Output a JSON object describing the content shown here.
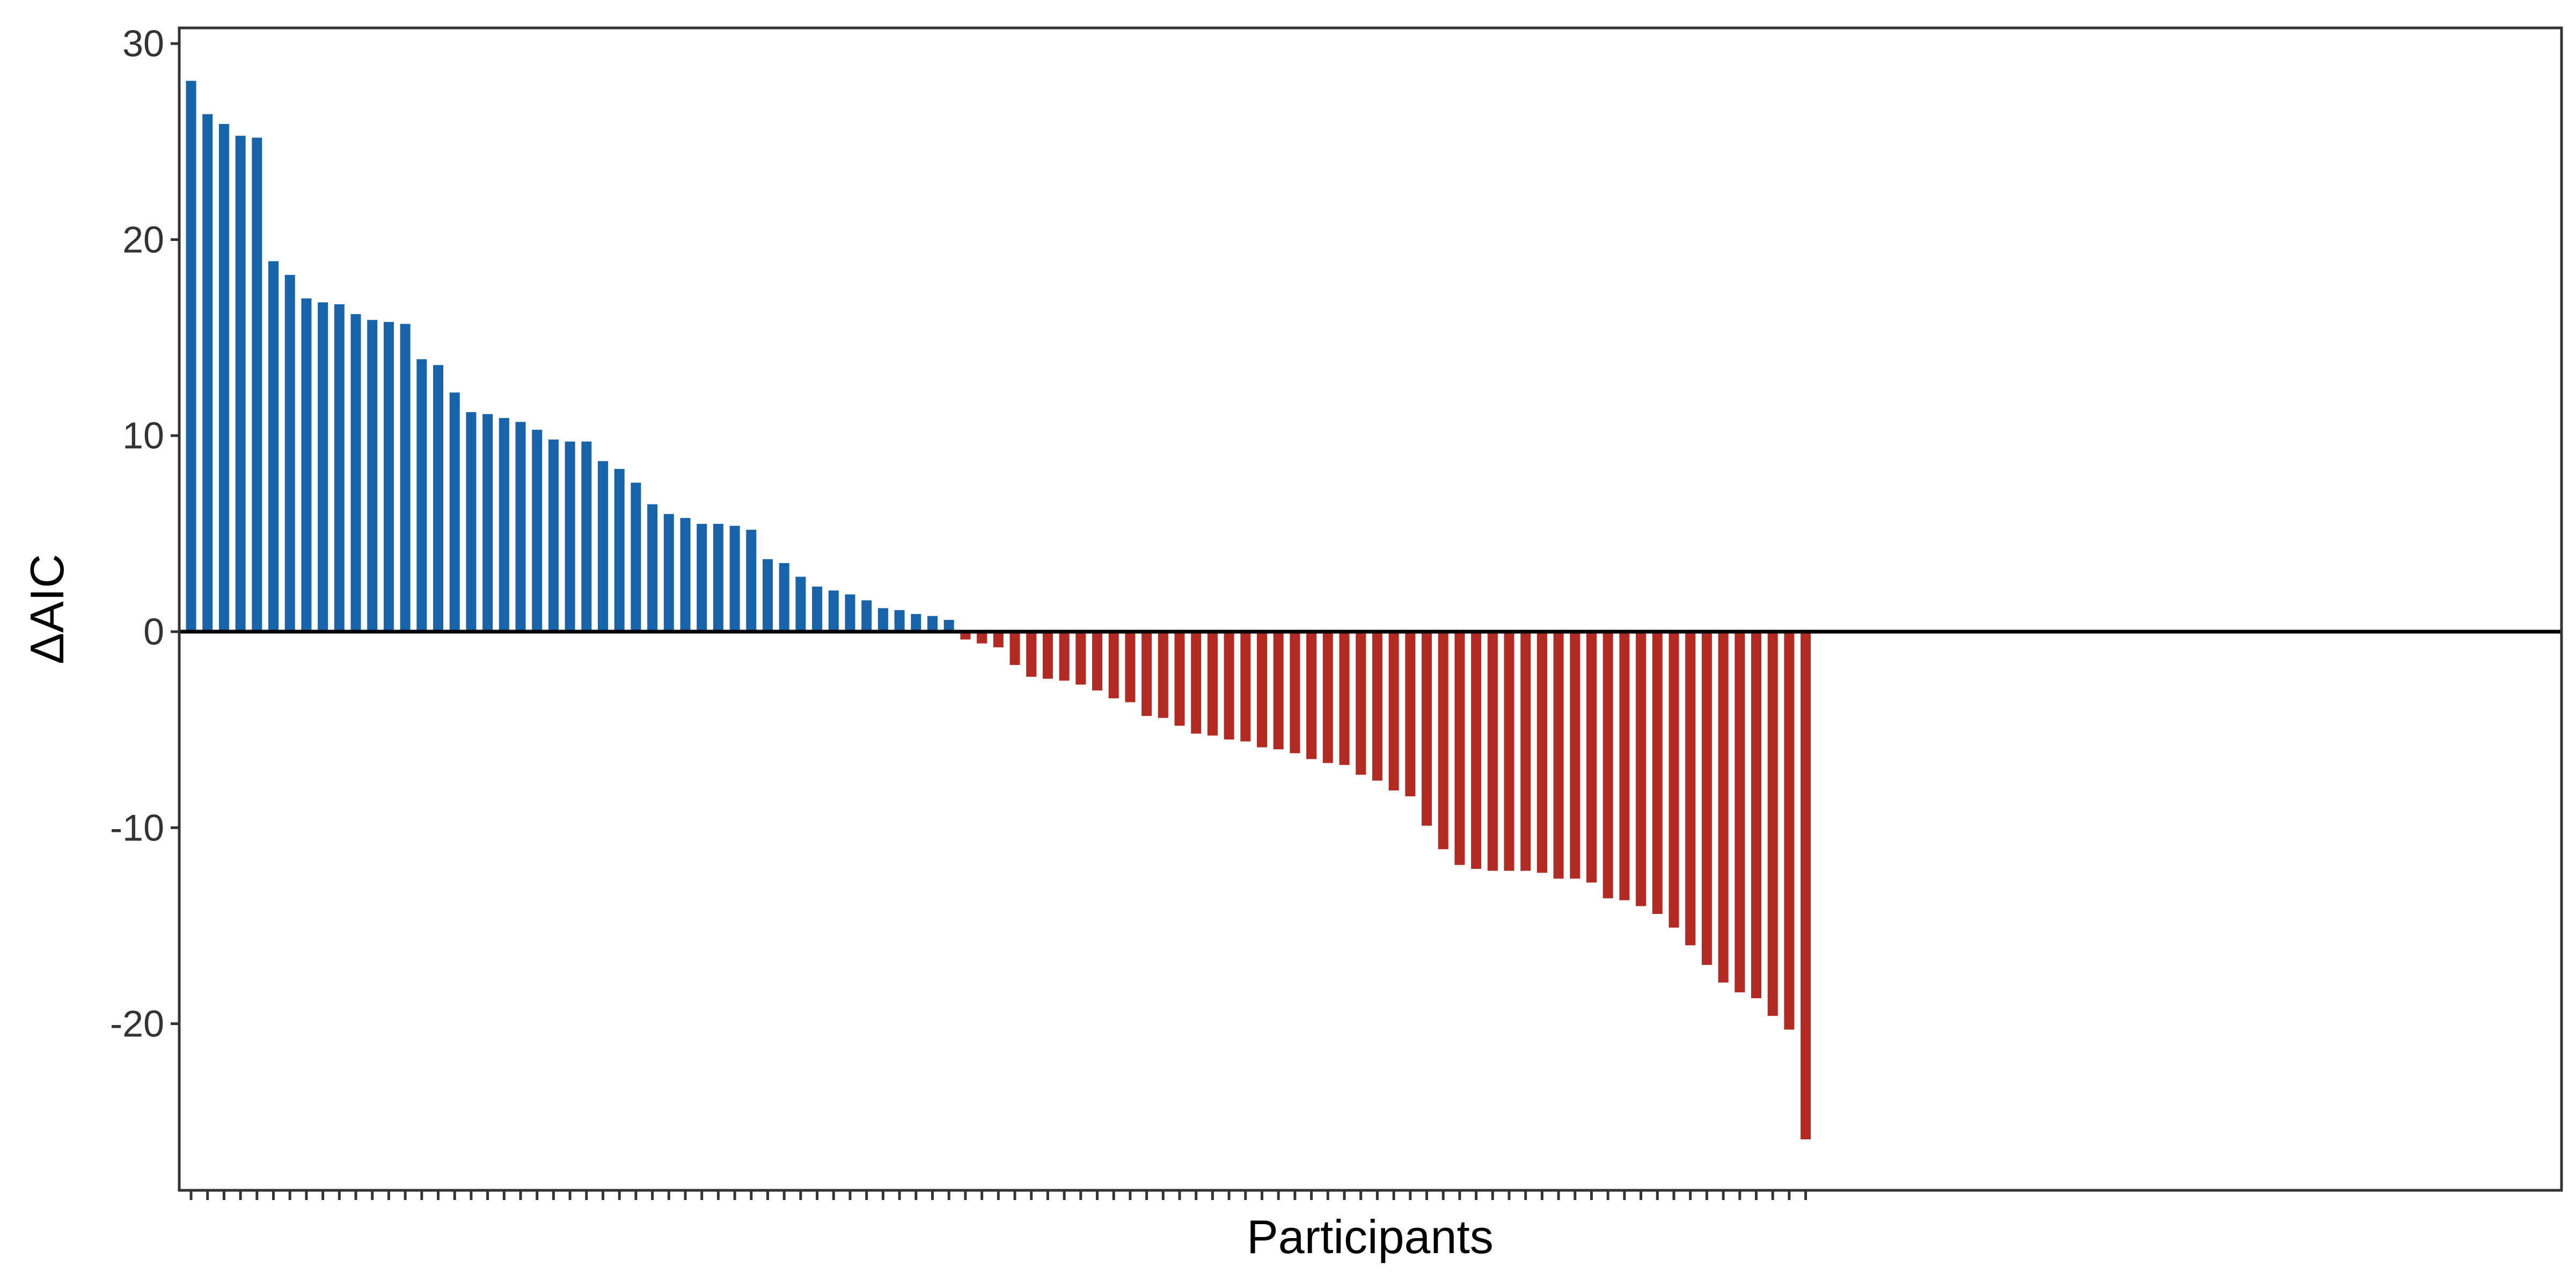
{
  "chart_data": {
    "type": "bar",
    "title": "",
    "xlabel": "Participants",
    "ylabel": "ΔAIC",
    "ylim": [
      -28.5,
      30.8
    ],
    "yticks": [
      30,
      20,
      10,
      0,
      -10,
      -20
    ],
    "ytick_labels": [
      "30",
      "20",
      "10",
      "0",
      "-10",
      "-20"
    ],
    "grid": false,
    "legend": "none",
    "colors": {
      "positive": "#1764AB",
      "negative": "#B22A22",
      "axis": "#000000",
      "zero_line": "#000000"
    },
    "values": [
      28.1,
      26.4,
      25.9,
      25.3,
      25.2,
      18.9,
      18.2,
      17.0,
      16.8,
      16.7,
      16.2,
      15.9,
      15.8,
      15.7,
      13.9,
      13.6,
      12.2,
      11.2,
      11.1,
      10.9,
      10.7,
      10.3,
      9.8,
      9.7,
      9.7,
      8.7,
      8.3,
      7.6,
      6.5,
      6.0,
      5.8,
      5.5,
      5.5,
      5.4,
      5.2,
      3.7,
      3.5,
      2.8,
      2.3,
      2.1,
      1.9,
      1.6,
      1.2,
      1.1,
      0.9,
      0.8,
      0.6,
      -0.4,
      -0.6,
      -0.8,
      -1.7,
      -2.3,
      -2.4,
      -2.5,
      -2.7,
      -3.0,
      -3.4,
      -3.6,
      -4.3,
      -4.4,
      -4.8,
      -5.2,
      -5.3,
      -5.5,
      -5.6,
      -5.9,
      -6.0,
      -6.2,
      -6.5,
      -6.7,
      -6.8,
      -7.3,
      -7.6,
      -8.1,
      -8.4,
      -9.9,
      -11.1,
      -11.9,
      -12.1,
      -12.2,
      -12.2,
      -12.2,
      -12.3,
      -12.6,
      -12.6,
      -12.8,
      -13.6,
      -13.7,
      -14.0,
      -14.4,
      -15.1,
      -16.0,
      -17.0,
      -17.9,
      -18.4,
      -18.7,
      -19.6,
      -20.3,
      -25.9
    ]
  }
}
